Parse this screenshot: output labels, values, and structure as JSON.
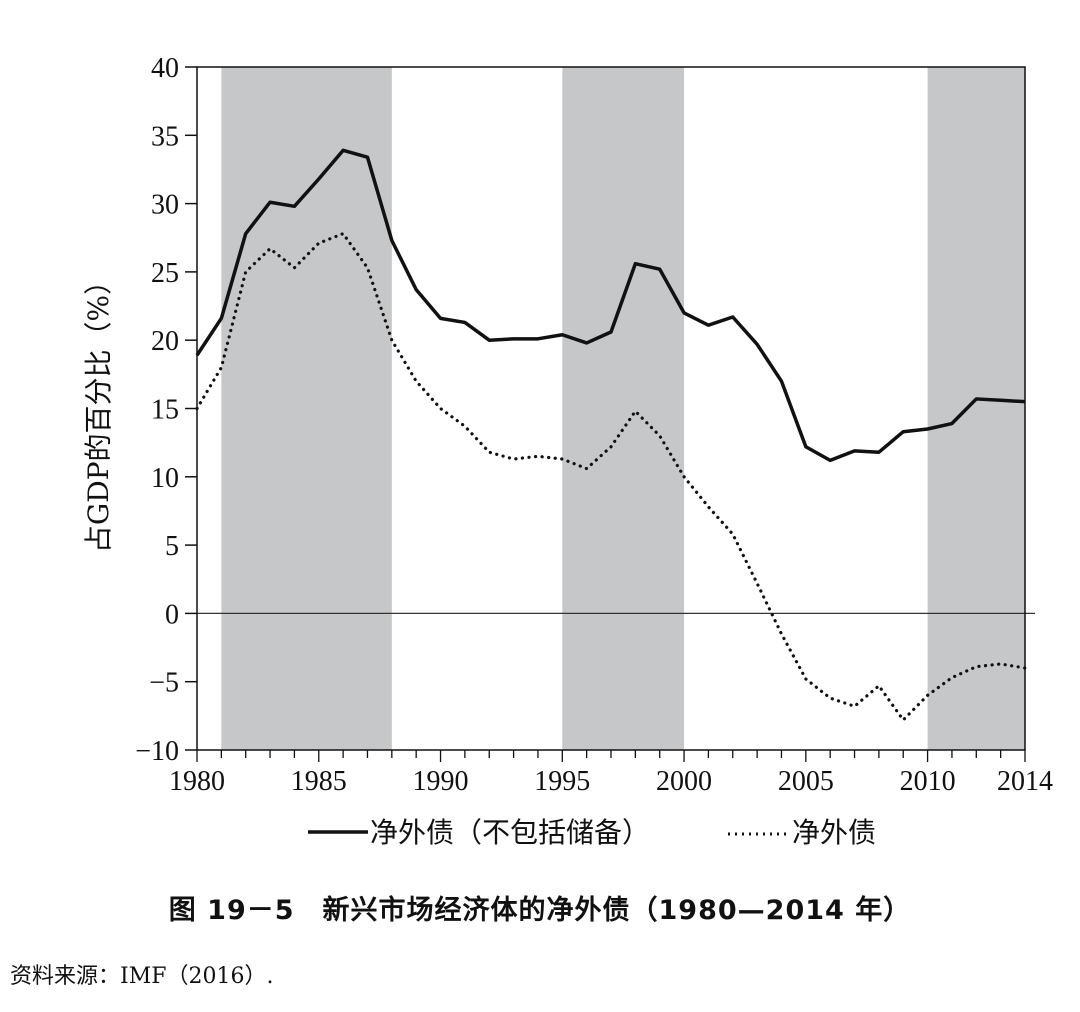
{
  "chart_data": {
    "type": "line",
    "ylabel": "占GDP的百分比（%）",
    "xlim": [
      1980,
      2014
    ],
    "ylim": [
      -10,
      40
    ],
    "x_ticks": [
      "1980",
      "1985",
      "1990",
      "1995",
      "2000",
      "2005",
      "2010",
      "2014"
    ],
    "y_ticks": [
      "40",
      "35",
      "30",
      "25",
      "20",
      "15",
      "10",
      "5",
      "0",
      "−5",
      "−10"
    ],
    "shaded_periods": [
      [
        1981,
        1988
      ],
      [
        1995,
        2000
      ],
      [
        2010,
        2014
      ]
    ],
    "x": [
      1980,
      1981,
      1982,
      1983,
      1984,
      1985,
      1986,
      1987,
      1988,
      1989,
      1990,
      1991,
      1992,
      1993,
      1994,
      1995,
      1996,
      1997,
      1998,
      1999,
      2000,
      2001,
      2002,
      2003,
      2004,
      2005,
      2006,
      2007,
      2008,
      2009,
      2010,
      2011,
      2012,
      2013,
      2014
    ],
    "series": [
      {
        "name": "净外债（不包括储备）",
        "style": "solid",
        "values": [
          18.9,
          21.6,
          27.8,
          30.1,
          29.8,
          31.8,
          33.9,
          33.4,
          27.3,
          23.7,
          21.6,
          21.3,
          20.0,
          20.1,
          20.1,
          20.4,
          19.8,
          20.6,
          25.6,
          25.2,
          22.0,
          21.1,
          21.7,
          19.7,
          17.0,
          12.2,
          11.2,
          11.9,
          11.8,
          13.3,
          13.5,
          13.9,
          15.7,
          15.6,
          15.5
        ]
      },
      {
        "name": "净外债",
        "style": "dotted",
        "values": [
          15.0,
          18.0,
          25.0,
          26.7,
          25.3,
          27.1,
          27.8,
          25.3,
          20.0,
          17.0,
          15.0,
          13.7,
          11.8,
          11.3,
          11.5,
          11.3,
          10.6,
          12.2,
          14.8,
          13.0,
          10.0,
          7.8,
          5.8,
          2.2,
          -1.5,
          -4.8,
          -6.2,
          -6.8,
          -5.3,
          -7.8,
          -6.0,
          -4.7,
          -3.9,
          -3.7,
          -4.0
        ]
      }
    ]
  },
  "legend": {
    "solid_label": "净外债（不包括储备）",
    "dotted_label": "净外债"
  },
  "caption": "图 19－5　新兴市场经济体的净外债（1980—2014 年）",
  "source": "资料来源：IMF（2016）."
}
